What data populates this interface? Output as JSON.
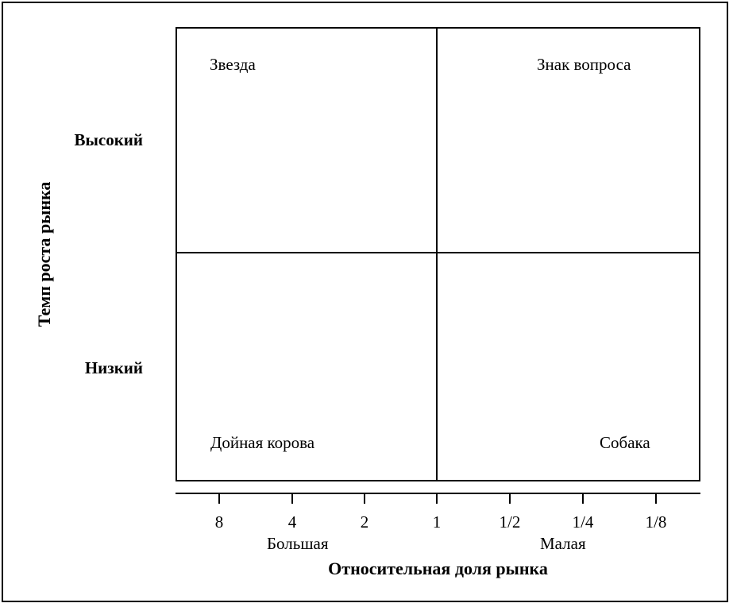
{
  "quadrants": {
    "top_left": "Звезда",
    "top_right": "Знак вопроса",
    "bottom_left": "Дойная корова",
    "bottom_right": "Собака"
  },
  "y_axis": {
    "title": "Темп роста рынка",
    "high": "Высокий",
    "low": "Низкий"
  },
  "x_axis": {
    "title": "Относительная доля рынка",
    "ticks": [
      "8",
      "4",
      "2",
      "1",
      "1/2",
      "1/4",
      "1/8"
    ],
    "large": "Большая",
    "small": "Малая"
  }
}
